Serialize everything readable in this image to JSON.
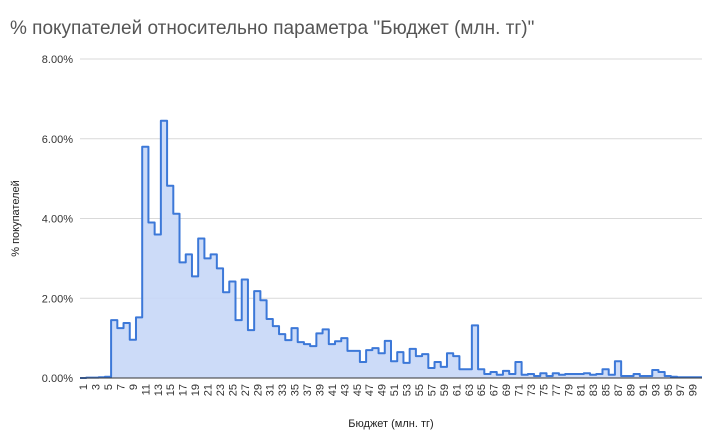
{
  "chart_data": {
    "type": "area",
    "title": "% покупателей относительно параметра \"Бюджет (млн. тг)\"",
    "xlabel": "Бюджет (млн. тг)",
    "ylabel": "% покупателей",
    "x": [
      1,
      2,
      3,
      4,
      5,
      6,
      7,
      8,
      9,
      10,
      11,
      12,
      13,
      14,
      15,
      16,
      17,
      18,
      19,
      20,
      21,
      22,
      23,
      24,
      25,
      26,
      27,
      28,
      29,
      30,
      31,
      32,
      33,
      34,
      35,
      36,
      37,
      38,
      39,
      40,
      41,
      42,
      43,
      44,
      45,
      46,
      47,
      48,
      49,
      50,
      51,
      52,
      53,
      54,
      55,
      56,
      57,
      58,
      59,
      60,
      61,
      62,
      63,
      64,
      65,
      66,
      67,
      68,
      69,
      70,
      71,
      72,
      73,
      74,
      75,
      76,
      77,
      78,
      79,
      80,
      81,
      82,
      83,
      84,
      85,
      86,
      87,
      88,
      89,
      90,
      91,
      92,
      93,
      94,
      95,
      96,
      97,
      98,
      99,
      100
    ],
    "values": [
      0.0,
      0.01,
      0.01,
      0.02,
      0.03,
      1.45,
      1.25,
      1.38,
      0.96,
      1.52,
      5.8,
      3.9,
      3.6,
      6.45,
      4.82,
      4.12,
      2.9,
      3.1,
      2.55,
      3.5,
      3.0,
      3.1,
      2.75,
      2.15,
      2.42,
      1.45,
      2.47,
      1.2,
      2.18,
      1.95,
      1.48,
      1.3,
      1.1,
      0.95,
      1.25,
      0.9,
      0.85,
      0.8,
      1.12,
      1.22,
      0.85,
      0.92,
      1.0,
      0.68,
      0.68,
      0.4,
      0.7,
      0.75,
      0.62,
      0.93,
      0.42,
      0.65,
      0.38,
      0.73,
      0.55,
      0.6,
      0.25,
      0.4,
      0.28,
      0.62,
      0.55,
      0.22,
      0.22,
      1.32,
      0.22,
      0.1,
      0.15,
      0.08,
      0.18,
      0.1,
      0.4,
      0.08,
      0.1,
      0.05,
      0.12,
      0.05,
      0.12,
      0.08,
      0.1,
      0.1,
      0.1,
      0.12,
      0.08,
      0.1,
      0.22,
      0.08,
      0.42,
      0.05,
      0.05,
      0.1,
      0.05,
      0.05,
      0.2,
      0.15,
      0.05,
      0.03,
      0.02,
      0.02,
      0.02,
      0.02
    ],
    "x_tick_labels": [
      "1",
      "3",
      "5",
      "7",
      "9",
      "11",
      "13",
      "15",
      "17",
      "19",
      "21",
      "23",
      "25",
      "27",
      "29",
      "31",
      "33",
      "35",
      "37",
      "39",
      "41",
      "43",
      "45",
      "47",
      "49",
      "51",
      "53",
      "55",
      "57",
      "59",
      "61",
      "63",
      "65",
      "67",
      "69",
      "71",
      "73",
      "75",
      "77",
      "79",
      "81",
      "83",
      "85",
      "87",
      "89",
      "91",
      "93",
      "95",
      "97",
      "99"
    ],
    "y_tick_labels": [
      "0.00%",
      "2.00%",
      "4.00%",
      "6.00%",
      "8.00%"
    ],
    "ylim": [
      0,
      8
    ],
    "grid": true,
    "legend": "none",
    "colors": {
      "line": "#3c78d8",
      "fill": "#c6d7f7",
      "grid": "#d9d9d9",
      "axis": "#333333",
      "title": "#555555"
    }
  }
}
